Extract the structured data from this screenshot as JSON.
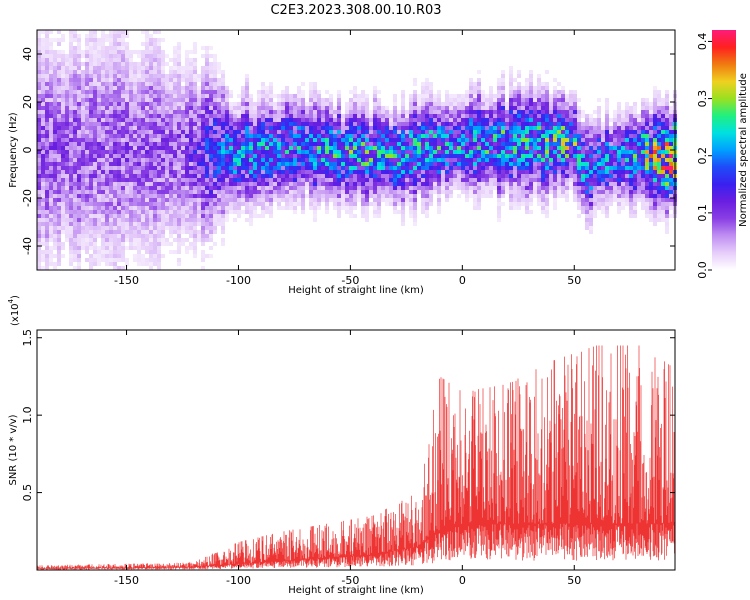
{
  "title": "C2E3.2023.308.00.10.R03",
  "colors": {
    "snr_line": "#ee3333",
    "colormap": [
      "#ffffff",
      "#e6cdfa",
      "#c08ff2",
      "#8a3fe4",
      "#6a1fe0",
      "#3a20f0",
      "#1f4af8",
      "#00a0ff",
      "#00e0e0",
      "#20f080",
      "#9be020",
      "#f0d020",
      "#f07a10",
      "#ff2020",
      "#ff1a7a"
    ]
  },
  "chart_data": [
    {
      "type": "heatmap",
      "xlabel": "Height of straight line (km)",
      "ylabel": "Frequency (Hz)",
      "xlim": [
        -190,
        95
      ],
      "ylim": [
        -50,
        50
      ],
      "x_ticks": [
        -150,
        -100,
        -50,
        0,
        50
      ],
      "x_tick_labels": [
        "-150",
        "-100",
        "-50",
        "0",
        "50"
      ],
      "y_ticks": [
        -40,
        -20,
        0,
        20,
        40
      ],
      "y_tick_labels": [
        "-40",
        "-20",
        "0",
        "20",
        "40"
      ],
      "colorbar": {
        "label": "Normalized spectral amplitude",
        "range": [
          0,
          0.42
        ],
        "ticks": [
          0.0,
          0.1,
          0.2,
          0.3,
          0.4
        ],
        "tick_labels": [
          "0.0",
          "0.1",
          "0.2",
          "0.3",
          "0.4"
        ]
      },
      "band_profile": {
        "x": [
          -190,
          -150,
          -125,
          -110,
          -100,
          -75,
          -50,
          -25,
          0,
          25,
          50,
          55,
          60,
          75,
          95
        ],
        "center_hz": [
          0,
          0,
          0,
          -2,
          -1,
          0,
          -1,
          -2,
          2,
          3,
          3,
          -10,
          -5,
          -3,
          -3
        ],
        "halfwidth_hz": [
          50,
          50,
          45,
          30,
          22,
          20,
          20,
          20,
          20,
          20,
          20,
          22,
          18,
          18,
          20
        ],
        "peak_amplitude": [
          0.1,
          0.1,
          0.1,
          0.18,
          0.22,
          0.22,
          0.25,
          0.24,
          0.24,
          0.25,
          0.28,
          0.22,
          0.2,
          0.24,
          0.4
        ]
      }
    },
    {
      "type": "line",
      "xlabel": "Height of straight line (km)",
      "ylabel": "SNR (10 * v/v)",
      "y_multiplier": "(x10",
      "y_multiplier_exp": "4",
      "y_multiplier_close": ")",
      "xlim": [
        -190,
        95
      ],
      "ylim": [
        0,
        15500
      ],
      "x_ticks": [
        -150,
        -100,
        -50,
        0,
        50
      ],
      "x_tick_labels": [
        "-150",
        "-100",
        "-50",
        "0",
        "50"
      ],
      "y_ticks": [
        5000,
        10000,
        15000
      ],
      "y_tick_labels": [
        "0.5",
        "1.0",
        "1.5"
      ],
      "series": [
        {
          "envelope_x": [
            -190,
            -150,
            -120,
            -110,
            -100,
            -80,
            -60,
            -40,
            -20,
            -10,
            0,
            20,
            40,
            60,
            80,
            95
          ],
          "envelope_min": [
            100,
            150,
            200,
            300,
            400,
            600,
            800,
            1000,
            1500,
            2500,
            3000,
            3000,
            3000,
            3000,
            3000,
            3000
          ],
          "envelope_max": [
            300,
            400,
            500,
            1200,
            1800,
            2500,
            3000,
            3500,
            5000,
            12500,
            11500,
            12000,
            13500,
            14500,
            14500,
            13000
          ]
        }
      ]
    }
  ]
}
